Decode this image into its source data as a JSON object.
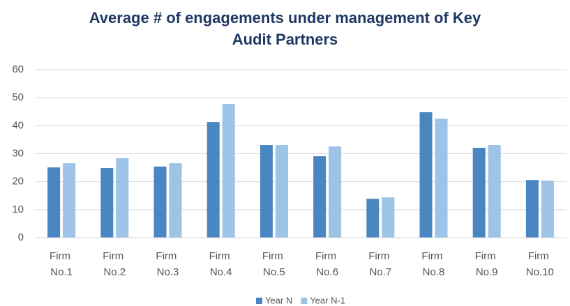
{
  "chart_data": {
    "type": "bar",
    "title": "Average # of engagements under management of Key Audit Partners",
    "categories": [
      "Firm No.1",
      "Firm No.2",
      "Firm No.3",
      "Firm No.4",
      "Firm No.5",
      "Firm No.6",
      "Firm No.7",
      "Firm No.8",
      "Firm No.9",
      "Firm No.10"
    ],
    "series": [
      {
        "name": "Year N",
        "color": "#4a86c1",
        "values": [
          25.1,
          24.9,
          25.4,
          41.3,
          33.1,
          29.1,
          13.9,
          44.8,
          32.1,
          20.6
        ]
      },
      {
        "name": "Year N-1",
        "color": "#9dc3e6",
        "values": [
          26.6,
          28.4,
          26.6,
          47.8,
          33.1,
          32.6,
          14.4,
          42.5,
          33.1,
          20.4
        ]
      }
    ],
    "ylim": [
      0,
      60
    ],
    "yticks": [
      0,
      10,
      20,
      30,
      40,
      50,
      60
    ],
    "grid": true,
    "legend": "bottom"
  }
}
